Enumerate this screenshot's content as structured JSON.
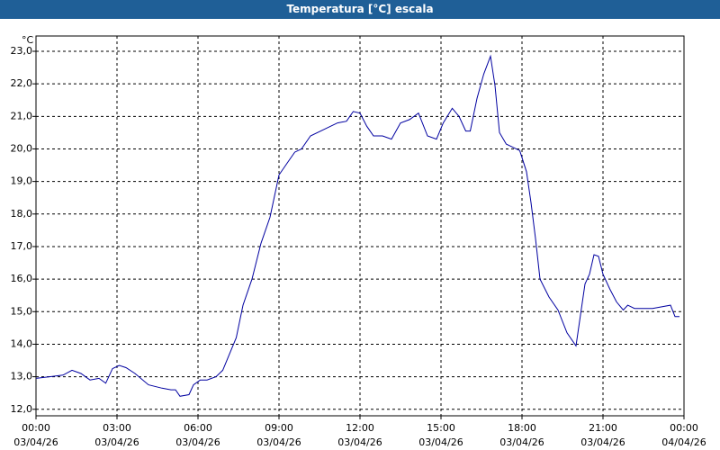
{
  "chart_data": {
    "type": "line",
    "title": "Temperatura [°C] escala",
    "y_unit": "°C",
    "x": [
      "03/04/26 00:00",
      "03/04/26 00:30",
      "03/04/26 01:00",
      "03/04/26 01:20",
      "03/04/26 01:40",
      "03/04/26 02:00",
      "03/04/26 02:20",
      "03/04/26 02:35",
      "03/04/26 02:50",
      "03/04/26 03:05",
      "03/04/26 03:20",
      "03/04/26 03:40",
      "03/04/26 04:10",
      "03/04/26 04:40",
      "03/04/26 05:00",
      "03/04/26 05:10",
      "03/04/26 05:20",
      "03/04/26 05:40",
      "03/04/26 05:50",
      "03/04/26 06:05",
      "03/04/26 06:20",
      "03/04/26 06:40",
      "03/04/26 06:55",
      "03/04/26 07:10",
      "03/04/26 07:25",
      "03/04/26 07:40",
      "03/04/26 08:00",
      "03/04/26 08:20",
      "03/04/26 08:40",
      "03/04/26 09:00",
      "03/04/26 09:20",
      "03/04/26 09:35",
      "03/04/26 09:50",
      "03/04/26 10:10",
      "03/04/26 10:40",
      "03/04/26 11:10",
      "03/04/26 11:30",
      "03/04/26 11:45",
      "03/04/26 12:00",
      "03/04/26 12:15",
      "03/04/26 12:30",
      "03/04/26 12:50",
      "03/04/26 13:10",
      "03/04/26 13:30",
      "03/04/26 13:50",
      "03/04/26 14:10",
      "03/04/26 14:30",
      "03/04/26 14:50",
      "03/04/26 15:05",
      "03/04/26 15:25",
      "03/04/26 15:40",
      "03/04/26 15:55",
      "03/04/26 16:05",
      "03/04/26 16:20",
      "03/04/26 16:35",
      "03/04/26 16:50",
      "03/04/26 17:00",
      "03/04/26 17:10",
      "03/04/26 17:25",
      "03/04/26 17:40",
      "03/04/26 17:55",
      "03/04/26 18:10",
      "03/04/26 18:20",
      "03/04/26 18:30",
      "03/04/26 18:40",
      "03/04/26 19:00",
      "03/04/26 19:20",
      "03/04/26 19:40",
      "03/04/26 20:00",
      "03/04/26 20:20",
      "03/04/26 20:30",
      "03/04/26 20:40",
      "03/04/26 20:50",
      "03/04/26 21:00",
      "03/04/26 21:15",
      "03/04/26 21:30",
      "03/04/26 21:45",
      "03/04/26 21:55",
      "03/04/26 22:10",
      "03/04/26 22:50",
      "03/04/26 23:30",
      "03/04/26 23:40",
      "03/04/26 23:50"
    ],
    "series": [
      {
        "name": "Temperatura",
        "color": "#0000a0",
        "values": [
          12.95,
          13.0,
          13.05,
          13.2,
          13.1,
          12.9,
          12.95,
          12.8,
          13.25,
          13.35,
          13.28,
          13.1,
          12.75,
          12.65,
          12.6,
          12.6,
          12.4,
          12.45,
          12.75,
          12.9,
          12.9,
          13.0,
          13.2,
          13.7,
          14.2,
          15.2,
          16.0,
          17.1,
          17.9,
          19.2,
          19.6,
          19.9,
          20.0,
          20.4,
          20.6,
          20.8,
          20.85,
          21.15,
          21.1,
          20.7,
          20.4,
          20.4,
          20.3,
          20.8,
          20.9,
          21.1,
          20.4,
          20.3,
          20.8,
          21.25,
          21.0,
          20.55,
          20.55,
          21.55,
          22.3,
          22.85,
          21.95,
          20.5,
          20.15,
          20.05,
          19.95,
          19.3,
          18.35,
          17.25,
          16.0,
          15.45,
          15.05,
          14.35,
          13.95,
          15.85,
          16.15,
          16.75,
          16.7,
          16.15,
          15.7,
          15.3,
          15.05,
          15.2,
          15.1,
          15.1,
          15.2,
          14.85,
          14.85
        ]
      }
    ],
    "xlim": [
      "03/04/26 00:00",
      "04/04/26 00:00"
    ],
    "xticks": [
      {
        "value": "03/04/26 00:00",
        "label": [
          "00:00",
          "03/04/26"
        ]
      },
      {
        "value": "03/04/26 03:00",
        "label": [
          "03:00",
          "03/04/26"
        ]
      },
      {
        "value": "03/04/26 06:00",
        "label": [
          "06:00",
          "03/04/26"
        ]
      },
      {
        "value": "03/04/26 09:00",
        "label": [
          "09:00",
          "03/04/26"
        ]
      },
      {
        "value": "03/04/26 12:00",
        "label": [
          "12:00",
          "03/04/26"
        ]
      },
      {
        "value": "03/04/26 15:00",
        "label": [
          "15:00",
          "03/04/26"
        ]
      },
      {
        "value": "03/04/26 18:00",
        "label": [
          "18:00",
          "03/04/26"
        ]
      },
      {
        "value": "03/04/26 21:00",
        "label": [
          "21:00",
          "03/04/26"
        ]
      },
      {
        "value": "04/04/26 00:00",
        "label": [
          "00:00",
          "04/04/26"
        ]
      }
    ],
    "ylim": [
      11.8,
      23.47
    ],
    "yticks": [
      {
        "value": 12,
        "label": "12,0"
      },
      {
        "value": 13,
        "label": "13,0"
      },
      {
        "value": 14,
        "label": "14,0"
      },
      {
        "value": 15,
        "label": "15,0"
      },
      {
        "value": 16,
        "label": "16,0"
      },
      {
        "value": 17,
        "label": "17,0"
      },
      {
        "value": 18,
        "label": "18,0"
      },
      {
        "value": 19,
        "label": "19,0"
      },
      {
        "value": 20,
        "label": "20,0"
      },
      {
        "value": 21,
        "label": "21,0"
      },
      {
        "value": 22,
        "label": "22,0"
      },
      {
        "value": 23,
        "label": "23,0"
      }
    ],
    "grid": true
  }
}
